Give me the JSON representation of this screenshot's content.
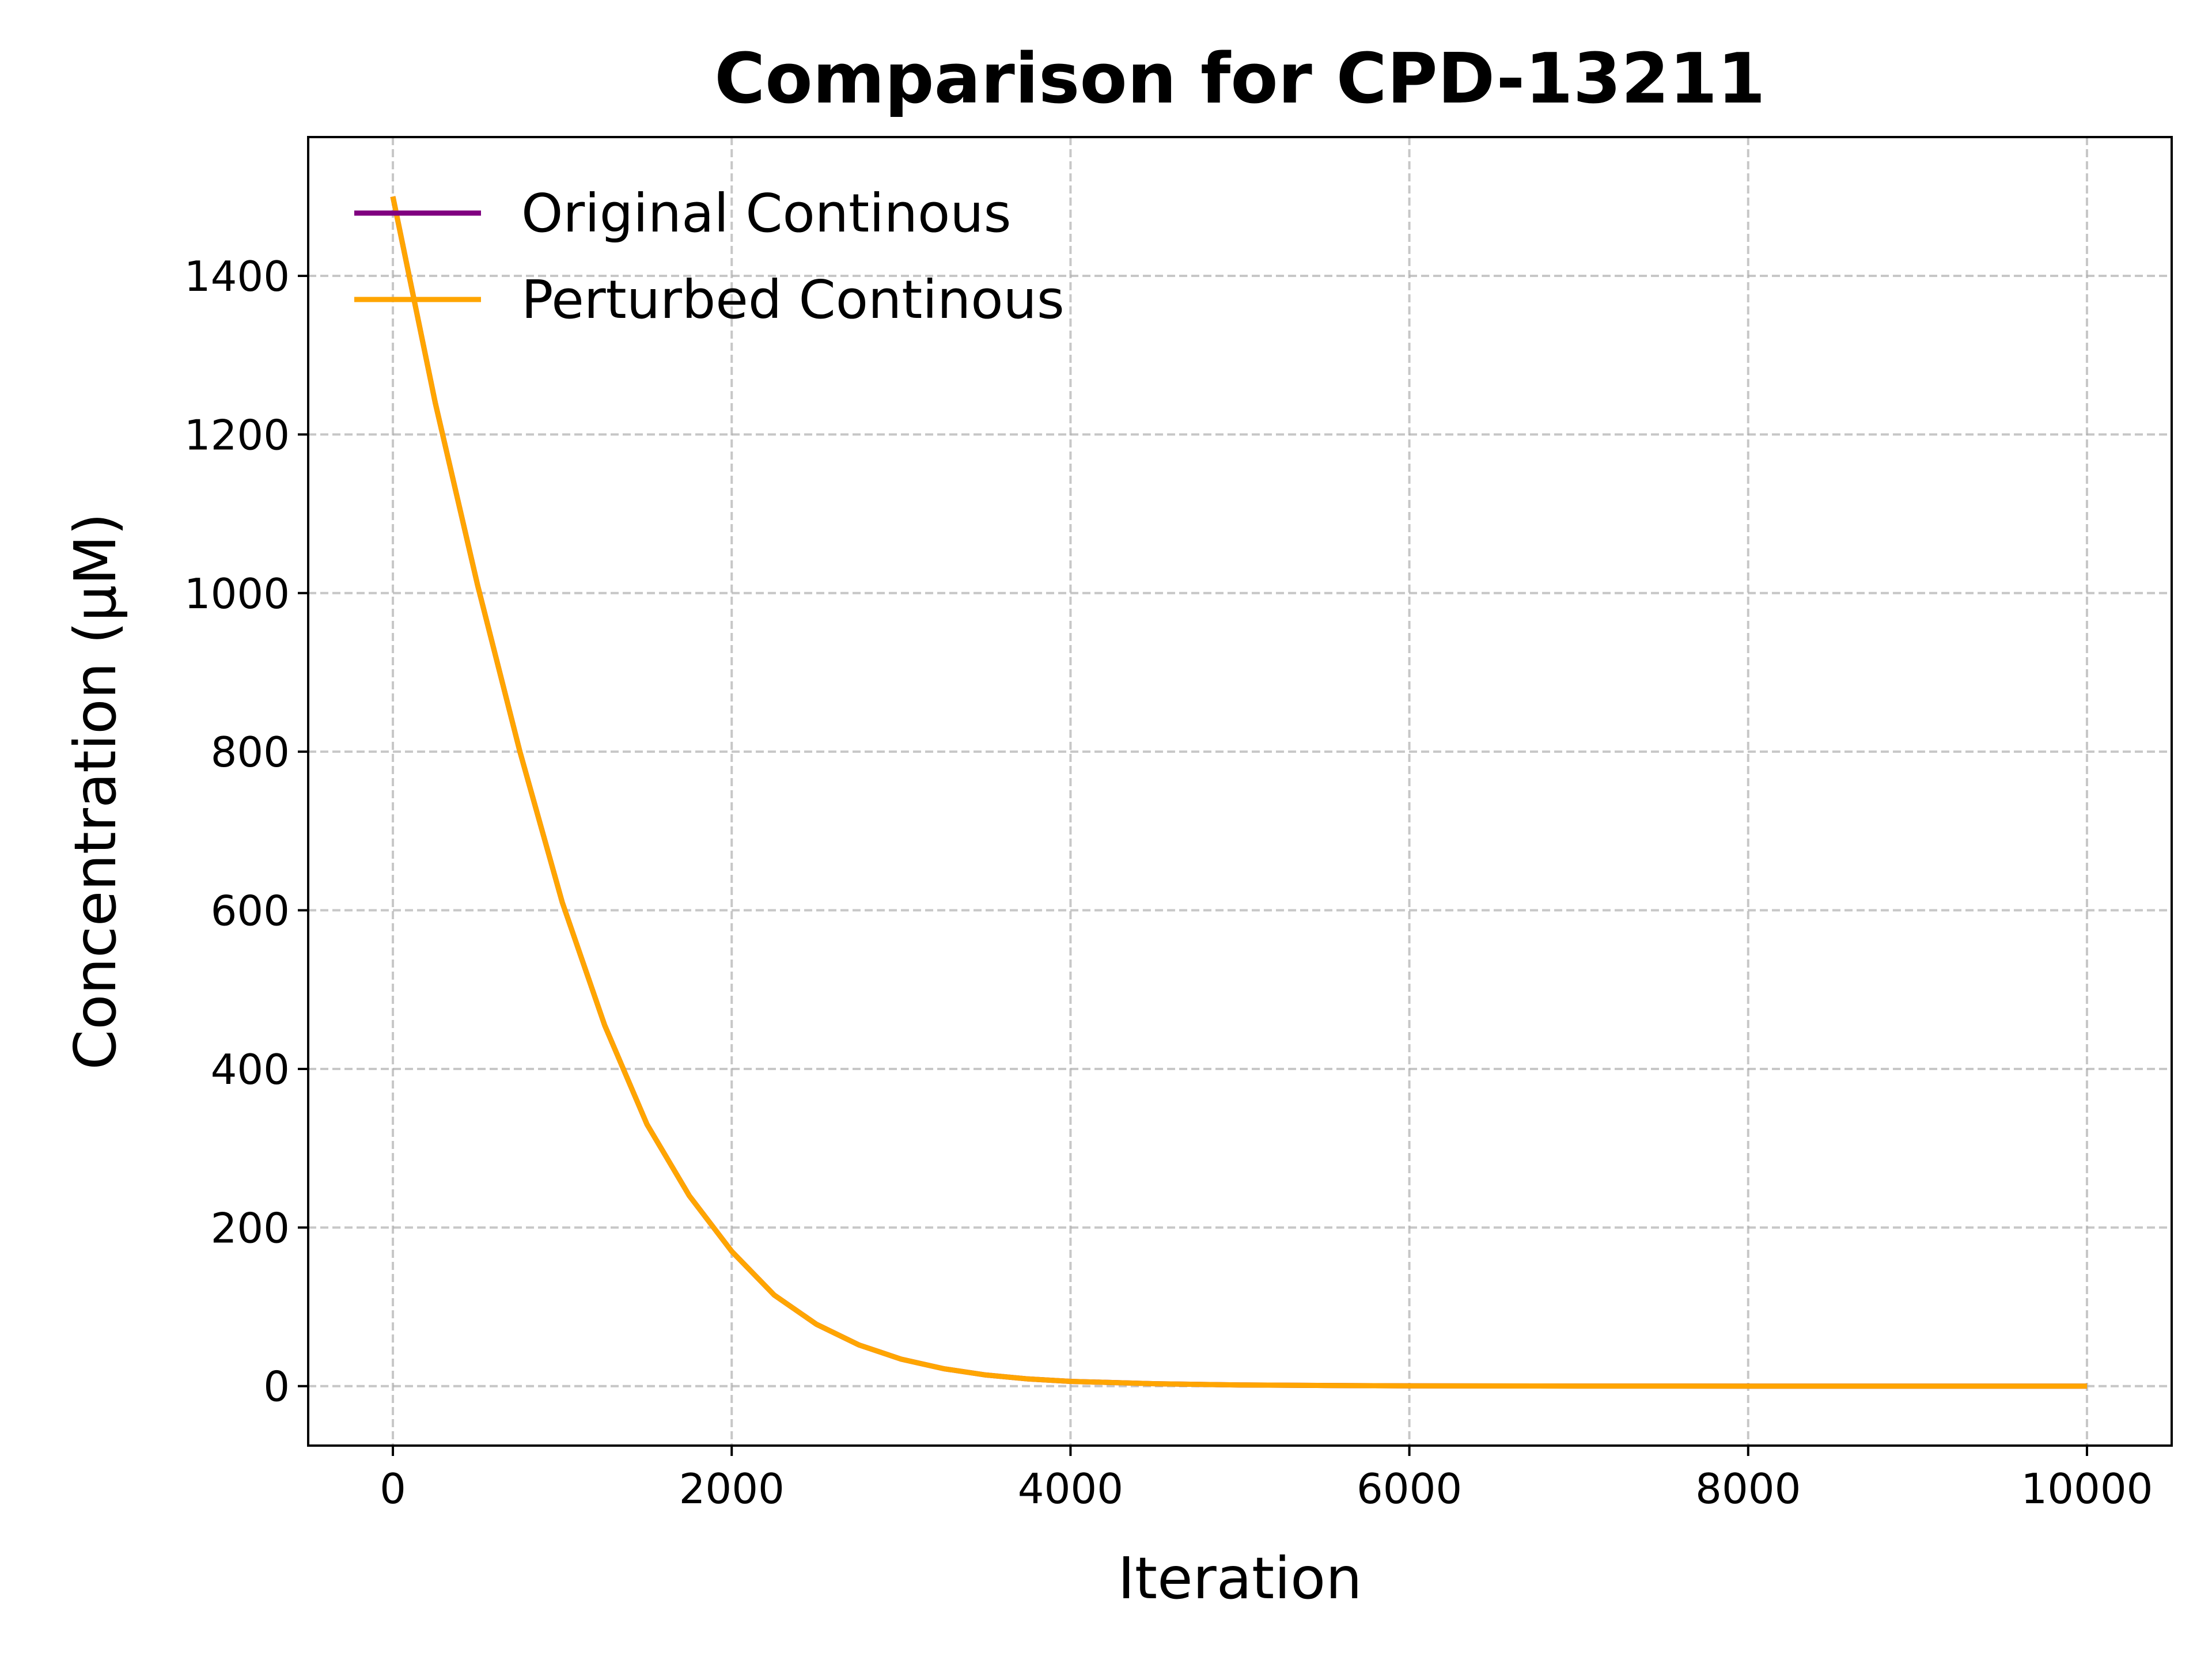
{
  "chart_data": {
    "type": "line",
    "title": "Comparison for CPD-13211",
    "xlabel": "Iteration",
    "ylabel": "Concentration (μM)",
    "xlim": [
      -500,
      10500
    ],
    "ylim": [
      -75,
      1575
    ],
    "xticks": [
      0,
      2000,
      4000,
      6000,
      8000,
      10000
    ],
    "yticks": [
      0,
      200,
      400,
      600,
      800,
      1000,
      1200,
      1400
    ],
    "grid": true,
    "legend_position": "top-left",
    "series": [
      {
        "name": "Original Continous",
        "color": "#800080",
        "x": [
          0,
          250,
          500,
          750,
          1000,
          1250,
          1500,
          1750,
          2000,
          2250,
          2500,
          2750,
          3000,
          3250,
          3500,
          3750,
          4000,
          4500,
          5000,
          5500,
          6000,
          7000,
          8000,
          9000,
          10000
        ],
        "y": [
          1500,
          1240,
          1010,
          800,
          610,
          455,
          330,
          240,
          170,
          115,
          78,
          52,
          34,
          22,
          14,
          9,
          6,
          3,
          1.5,
          0.8,
          0.4,
          0.1,
          0,
          0,
          0
        ]
      },
      {
        "name": "Perturbed Continous",
        "color": "#FFA500",
        "x": [
          0,
          250,
          500,
          750,
          1000,
          1250,
          1500,
          1750,
          2000,
          2250,
          2500,
          2750,
          3000,
          3250,
          3500,
          3750,
          4000,
          4500,
          5000,
          5500,
          6000,
          7000,
          8000,
          9000,
          10000
        ],
        "y": [
          1500,
          1240,
          1010,
          800,
          610,
          455,
          330,
          240,
          170,
          115,
          78,
          52,
          34,
          22,
          14,
          9,
          6,
          3,
          1.5,
          0.8,
          0.4,
          0.1,
          0,
          0,
          0
        ]
      }
    ]
  }
}
